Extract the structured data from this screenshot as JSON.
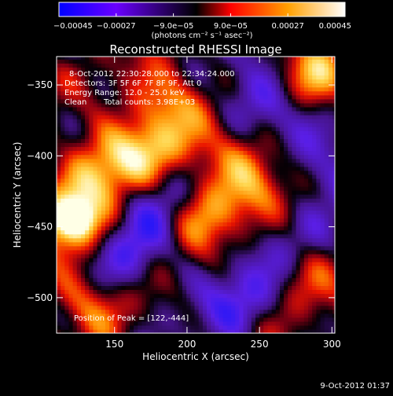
{
  "chart_data": {
    "type": "heatmap",
    "title": "Reconstructed RHESSI Image",
    "xlabel": "Heliocentric X (arcsec)",
    "ylabel": "Heliocentric Y (arcsec)",
    "xlim": [
      110,
      302
    ],
    "ylim": [
      -525,
      -330
    ],
    "x_ticks": [
      150,
      200,
      250,
      300
    ],
    "x_tick_labels": [
      "150",
      "200",
      "250",
      "300"
    ],
    "y_ticks": [
      -350,
      -400,
      -450,
      -500
    ],
    "y_tick_labels": [
      "−350",
      "−400",
      "−450",
      "−500"
    ],
    "colorbar": {
      "range": [
        -0.00045,
        0.00045
      ],
      "tick_values": [
        -0.00045,
        -0.00027,
        -9e-05,
        9e-05,
        0.00027,
        0.00045
      ],
      "tick_labels": [
        "−0.00045",
        "−0.00027",
        "−9.0e−05",
        "9.0e−05",
        "0.00027",
        "0.00045"
      ],
      "units_label": "(photons cm⁻² s⁻¹ asec⁻²)",
      "colors": [
        "#0000ff",
        "#7a00ff",
        "#000000",
        "#ff0000",
        "#ffa000",
        "#ffffff"
      ]
    },
    "grid": false,
    "peak": [
      122,
      -444
    ],
    "bright_sources": [
      {
        "x": 120,
        "y": -445,
        "level": 1.0
      },
      {
        "x": 170,
        "y": -395,
        "level": 0.85
      },
      {
        "x": 210,
        "y": -440,
        "level": 0.8
      },
      {
        "x": 140,
        "y": -410,
        "level": 0.75
      },
      {
        "x": 190,
        "y": -360,
        "level": 0.7
      },
      {
        "x": 290,
        "y": -345,
        "level": 0.75
      },
      {
        "x": 250,
        "y": -420,
        "level": 0.55
      },
      {
        "x": 130,
        "y": -500,
        "level": 0.55
      },
      {
        "x": 235,
        "y": -400,
        "level": 0.5
      },
      {
        "x": 280,
        "y": -480,
        "level": 0.5
      }
    ],
    "dim_sources": [
      {
        "x": 180,
        "y": -430,
        "level": -0.6
      },
      {
        "x": 250,
        "y": -360,
        "level": -0.7
      },
      {
        "x": 295,
        "y": -410,
        "level": -0.6
      },
      {
        "x": 230,
        "y": -500,
        "level": -0.5
      },
      {
        "x": 155,
        "y": -470,
        "level": -0.5
      },
      {
        "x": 265,
        "y": -465,
        "level": -0.45
      }
    ]
  },
  "annotations": {
    "time_range": "8-Oct-2012 22:30:28.000 to 22:34:24.000",
    "detectors": "Detectors: 3F 5F 6F 7F 8F 9F, Att 0",
    "energy_range": "Energy Range: 12.0 - 25.0 keV",
    "method": "Clean",
    "total_counts": "Total counts: 3.98E+03",
    "peak_position": "Position of Peak = [122,-444]"
  },
  "footer": {
    "timestamp": "9-Oct-2012 01:37"
  }
}
